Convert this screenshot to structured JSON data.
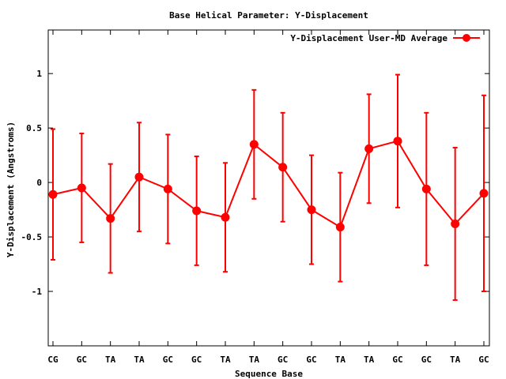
{
  "chart_data": {
    "type": "line",
    "title": "Base  Helical Parameter: Y-Displacement",
    "xlabel": "Sequence Base",
    "ylabel": "Y-Displacement (Angstroms)",
    "categories": [
      "CG",
      "GC",
      "TA",
      "TA",
      "GC",
      "GC",
      "TA",
      "TA",
      "GC",
      "GC",
      "TA",
      "TA",
      "GC",
      "GC",
      "TA",
      "GC"
    ],
    "ylim": [
      -1.5,
      1.4
    ],
    "yticks": [
      -1,
      -0.5,
      0,
      0.5,
      1
    ],
    "ytick_labels": [
      "-1",
      "-0.5",
      "0",
      "0.5",
      "1"
    ],
    "grid": false,
    "legend_position": "top-right",
    "color": "#ff0000",
    "series": [
      {
        "name": "Y-Displacement User-MD Average",
        "values": [
          -0.11,
          -0.05,
          -0.33,
          0.05,
          -0.06,
          -0.26,
          -0.32,
          0.35,
          0.14,
          -0.25,
          -0.41,
          0.31,
          0.38,
          -0.06,
          -0.38,
          -0.1
        ],
        "error": [
          0.6,
          0.5,
          0.5,
          0.5,
          0.5,
          0.5,
          0.5,
          0.5,
          0.5,
          0.5,
          0.5,
          0.5,
          0.61,
          0.7,
          0.7,
          0.9
        ]
      }
    ]
  }
}
